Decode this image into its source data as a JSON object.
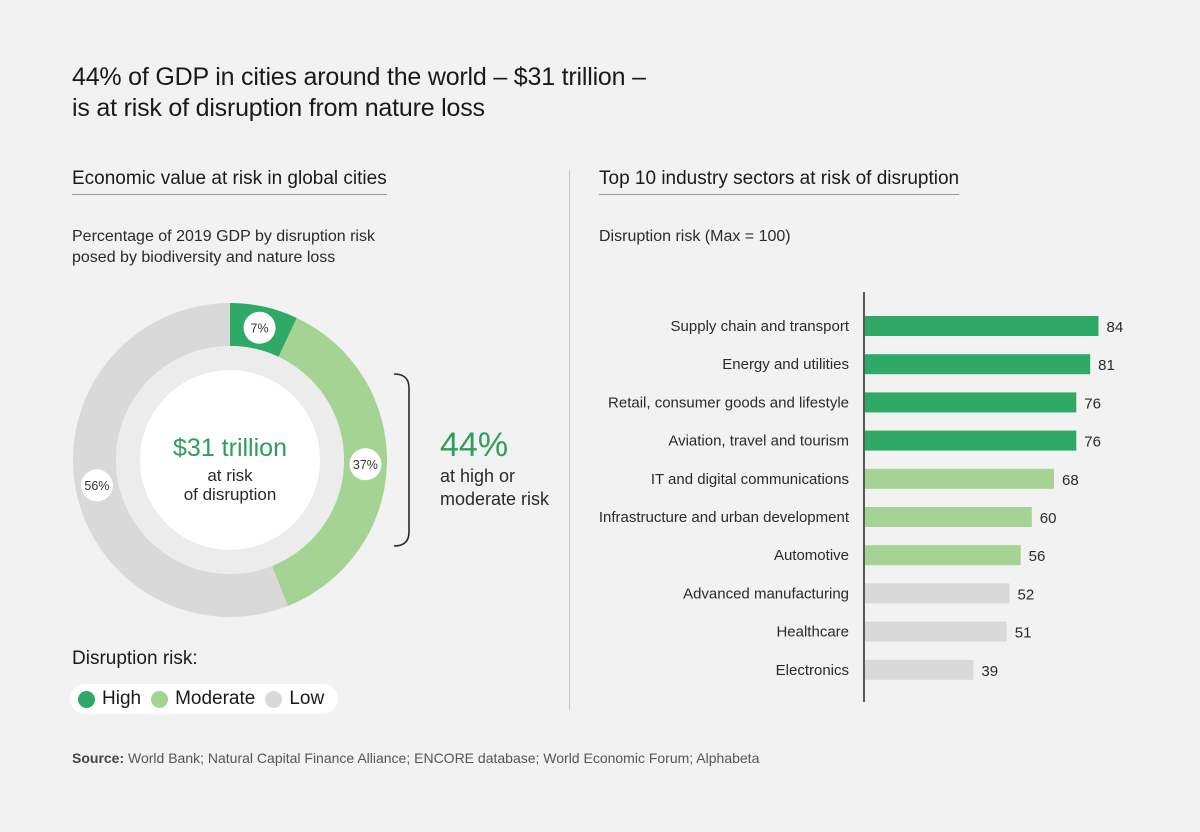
{
  "title": {
    "line1": "44% of GDP in cities around the world – $31 trillion –",
    "line2": "is at risk of disruption from nature loss"
  },
  "left_panel": {
    "heading": "Economic value at risk in global cities",
    "subtitle_line1": "Percentage of 2019 GDP by disruption risk",
    "subtitle_line2": "posed by biodiversity and nature loss",
    "center_value": "$31 trillion",
    "center_line1": "at risk",
    "center_line2": "of disruption",
    "callout_value": "44%",
    "callout_line1": "at high or",
    "callout_line2": "moderate risk",
    "legend_title": "Disruption risk:",
    "legend": [
      {
        "label": "High",
        "color": "#2eaa66"
      },
      {
        "label": "Moderate",
        "color": "#a5d394"
      },
      {
        "label": "Low",
        "color": "#d9d9d9"
      }
    ]
  },
  "right_panel": {
    "heading": "Top 10 industry sectors at risk of disruption",
    "subtitle": "Disruption risk (Max = 100)"
  },
  "source_label": "Source:",
  "source_text": "World Bank; Natural Capital Finance Alliance; ENCORE database; World Economic Forum; Alphabeta",
  "chart_data": [
    {
      "type": "pie",
      "title": "Economic value at risk in global cities",
      "slices": [
        {
          "name": "High",
          "value": 7,
          "label": "7%",
          "color": "#2eaa66"
        },
        {
          "name": "Moderate",
          "value": 37,
          "label": "37%",
          "color": "#a5d394"
        },
        {
          "name": "Low",
          "value": 56,
          "label": "56%",
          "color": "#d9d9d9"
        }
      ]
    },
    {
      "type": "bar",
      "orientation": "horizontal",
      "title": "Top 10 industry sectors at risk of disruption",
      "xlim": [
        0,
        100
      ],
      "grid": false,
      "categories": [
        "Supply chain and transport",
        "Energy and utilities",
        "Retail, consumer goods and lifestyle",
        "Aviation, travel and tourism",
        "IT and digital communications",
        "Infrastructure and urban development",
        "Automotive",
        "Advanced manufacturing",
        "Healthcare",
        "Electronics"
      ],
      "values": [
        84,
        81,
        76,
        76,
        68,
        60,
        56,
        52,
        51,
        39
      ],
      "risk_levels": [
        "High",
        "High",
        "High",
        "High",
        "Moderate",
        "Moderate",
        "Moderate",
        "Low",
        "Low",
        "Low"
      ],
      "colors": {
        "High": "#2eaa66",
        "Moderate": "#a5d394",
        "Low": "#d9d9d9"
      }
    }
  ]
}
